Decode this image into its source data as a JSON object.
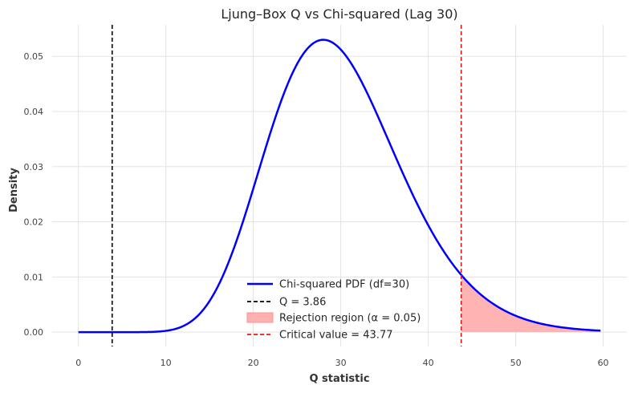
{
  "chart_data": {
    "type": "line",
    "title": "Ljung–Box Q vs Chi-squared (Lag 30)",
    "xlabel": "Q statistic",
    "ylabel": "Density",
    "xlim": [
      -3.0,
      62.7
    ],
    "ylim": [
      -0.0026,
      0.0557
    ],
    "x_ticks": [
      0,
      10,
      20,
      30,
      40,
      50,
      60
    ],
    "y_ticks": [
      0.0,
      0.01,
      0.02,
      0.03,
      0.04,
      0.05
    ],
    "y_tick_labels": [
      "0.00",
      "0.01",
      "0.02",
      "0.03",
      "0.04",
      "0.05"
    ],
    "grid": true,
    "legend_placement": "lower-center",
    "distribution": {
      "name": "Chi-squared PDF (df=30)",
      "df": 30,
      "x_range": [
        0,
        59.7
      ],
      "color": "#0000ff"
    },
    "observed_q": {
      "name": "Q = 3.86",
      "value": 3.86,
      "color": "#000000"
    },
    "rejection_region": {
      "name": "Rejection region (α = 0.05)",
      "from": 43.77,
      "color": "#ff9999"
    },
    "critical_value": {
      "name": "Critical value = 43.77",
      "value": 43.77,
      "color": "#e31a1c"
    }
  }
}
